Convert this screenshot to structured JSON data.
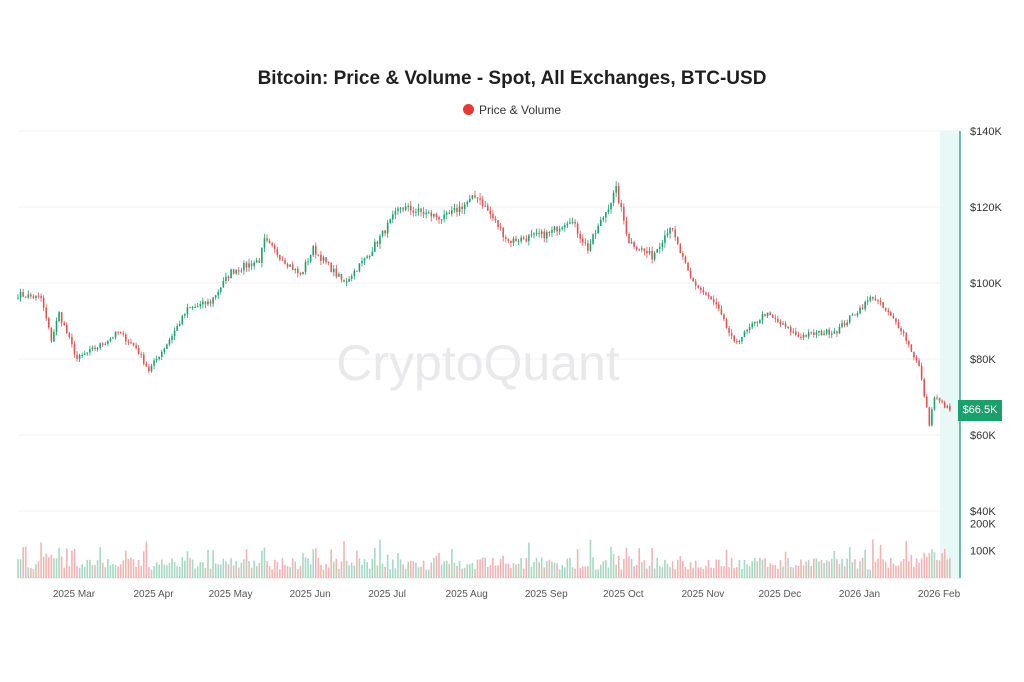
{
  "chart_data": {
    "type": "candlestick",
    "title": "Bitcoin: Price & Volume - Spot, All Exchanges, BTC-USD",
    "legend": {
      "label": "Price & Volume",
      "placement": "top-center",
      "color": "#e53935"
    },
    "watermark": "CryptoQuant",
    "colors": {
      "up": "#1aa06d",
      "down": "#e05353",
      "volume_up": "#a8d8c3",
      "volume_down": "#f2b3b3",
      "highlight_band": "#e8f8f6",
      "current_line": "#1aa06d",
      "price_tag_bg": "#1aa06d"
    },
    "price_axis": {
      "position": "right",
      "unit": "USD",
      "ylim": [
        40000,
        140000
      ],
      "tick_values": [
        40000,
        60000,
        80000,
        100000,
        120000,
        140000
      ],
      "tick_labels": [
        "$40K",
        "$60K",
        "$80K",
        "$100K",
        "$120K",
        "$140K"
      ]
    },
    "volume_axis": {
      "ylim": [
        0,
        220000
      ],
      "tick_values": [
        100000,
        200000
      ],
      "tick_labels": [
        "100K",
        "200K"
      ]
    },
    "x_axis": {
      "start": "2025-02-15",
      "end": "2026-02-15",
      "ticks": [
        {
          "date": "2025-03-01",
          "label": "2025 Mar"
        },
        {
          "date": "2025-04-01",
          "label": "2025 Apr"
        },
        {
          "date": "2025-05-01",
          "label": "2025 May"
        },
        {
          "date": "2025-06-01",
          "label": "2025 Jun"
        },
        {
          "date": "2025-07-01",
          "label": "2025 Jul"
        },
        {
          "date": "2025-08-01",
          "label": "2025 Aug"
        },
        {
          "date": "2025-09-01",
          "label": "2025 Sep"
        },
        {
          "date": "2025-10-01",
          "label": "2025 Oct"
        },
        {
          "date": "2025-11-01",
          "label": "2025 Nov"
        },
        {
          "date": "2025-12-01",
          "label": "2025 Dec"
        },
        {
          "date": "2026-01-01",
          "label": "2026 Jan"
        },
        {
          "date": "2026-02-01",
          "label": "2026 Feb"
        }
      ]
    },
    "current_price": {
      "value": 66500,
      "label": "$66.5K"
    },
    "price_path": [
      [
        "2025-02-15",
        97000
      ],
      [
        "2025-02-24",
        96000
      ],
      [
        "2025-02-28",
        85000
      ],
      [
        "2025-03-03",
        92000
      ],
      [
        "2025-03-10",
        80000
      ],
      [
        "2025-03-20",
        84000
      ],
      [
        "2025-03-26",
        87000
      ],
      [
        "2025-04-02",
        83000
      ],
      [
        "2025-04-07",
        77000
      ],
      [
        "2025-04-14",
        84000
      ],
      [
        "2025-04-22",
        93000
      ],
      [
        "2025-05-01",
        95000
      ],
      [
        "2025-05-09",
        103000
      ],
      [
        "2025-05-20",
        106000
      ],
      [
        "2025-05-22",
        111000
      ],
      [
        "2025-06-05",
        102000
      ],
      [
        "2025-06-10",
        109000
      ],
      [
        "2025-06-22",
        100000
      ],
      [
        "2025-07-01",
        107000
      ],
      [
        "2025-07-14",
        120000
      ],
      [
        "2025-07-31",
        117000
      ],
      [
        "2025-08-13",
        123000
      ],
      [
        "2025-08-25",
        111000
      ],
      [
        "2025-09-10",
        113000
      ],
      [
        "2025-09-18",
        117000
      ],
      [
        "2025-09-25",
        109000
      ],
      [
        "2025-10-06",
        124500
      ],
      [
        "2025-10-11",
        111000
      ],
      [
        "2025-10-20",
        107000
      ],
      [
        "2025-10-27",
        115000
      ],
      [
        "2025-11-04",
        101000
      ],
      [
        "2025-11-14",
        94000
      ],
      [
        "2025-11-21",
        84000
      ],
      [
        "2025-12-03",
        92000
      ],
      [
        "2025-12-16",
        86000
      ],
      [
        "2025-12-31",
        87500
      ],
      [
        "2026-01-14",
        96500
      ],
      [
        "2026-01-25",
        88000
      ],
      [
        "2026-02-01",
        78000
      ],
      [
        "2026-02-05",
        63000
      ],
      [
        "2026-02-07",
        70000
      ],
      [
        "2026-02-13",
        66500
      ]
    ]
  }
}
